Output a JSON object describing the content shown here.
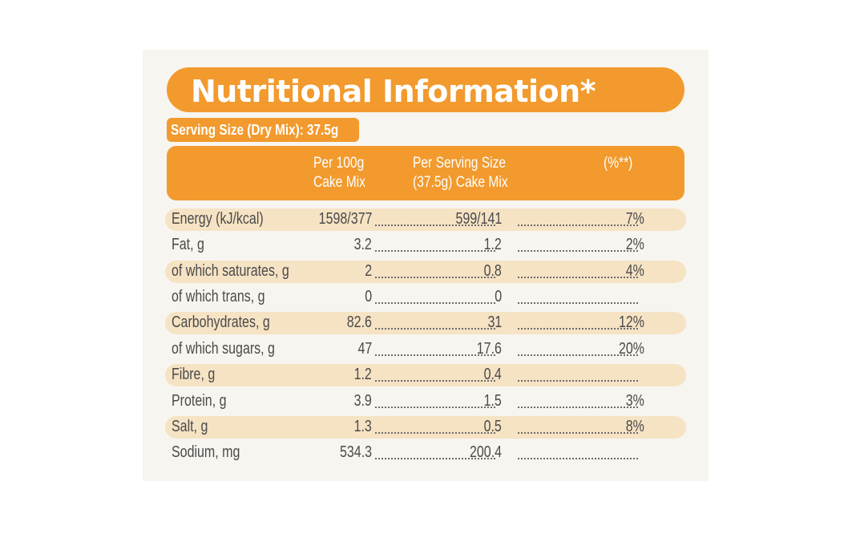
{
  "title": "Nutritional Information*",
  "serving_size": "Serving Size (Dry Mix): 37.5g",
  "columns": {
    "per100_line1": "Per 100g",
    "per100_line2": "Cake Mix",
    "serving_line1": "Per Serving Size",
    "serving_line2": "(37.5g) Cake Mix",
    "percent": "(%**)"
  },
  "rows": [
    {
      "nutrient": "Energy (kJ/kcal)",
      "per100": "1598/377",
      "per_serving": "599/141",
      "percent": "7%"
    },
    {
      "nutrient": "Fat, g",
      "per100": "3.2",
      "per_serving": "1.2",
      "percent": "2%"
    },
    {
      "nutrient": "of which saturates, g",
      "per100": "2",
      "per_serving": "0.8",
      "percent": "4%"
    },
    {
      "nutrient": "of which trans, g",
      "per100": "0",
      "per_serving": "0",
      "percent": ""
    },
    {
      "nutrient": "Carbohydrates, g",
      "per100": "82.6",
      "per_serving": "31",
      "percent": "12%"
    },
    {
      "nutrient": "of which sugars, g",
      "per100": "47",
      "per_serving": "17.6",
      "percent": "20%"
    },
    {
      "nutrient": "Fibre, g",
      "per100": "1.2",
      "per_serving": "0.4",
      "percent": ""
    },
    {
      "nutrient": "Protein, g",
      "per100": "3.9",
      "per_serving": "1.5",
      "percent": "3%"
    },
    {
      "nutrient": "Salt, g",
      "per100": "1.3",
      "per_serving": "0.5",
      "percent": "8%"
    },
    {
      "nutrient": "Sodium, mg",
      "per100": "534.3",
      "per_serving": "200.4",
      "percent": ""
    }
  ],
  "colors": {
    "brand_orange": "#f29a2e",
    "row_shade": "#f6e3c4",
    "card_background": "#f7f5ef",
    "text": "#4a4a4a"
  }
}
